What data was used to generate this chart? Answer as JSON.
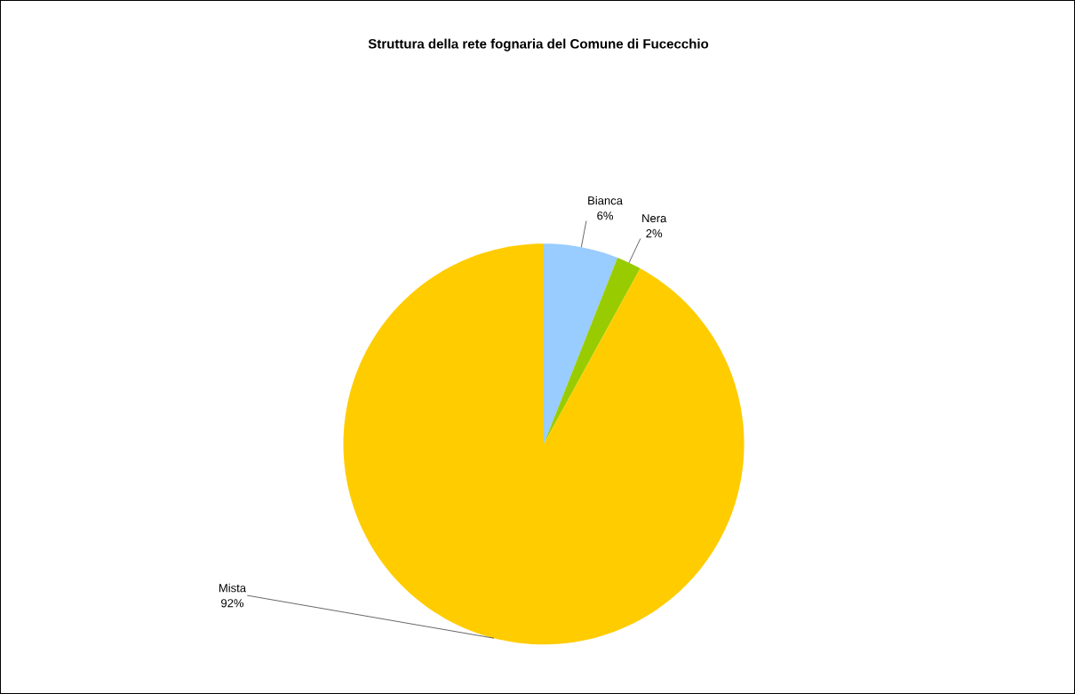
{
  "chart_data": {
    "type": "pie",
    "title": "Struttura della rete fognaria del Comune di Fucecchio",
    "categories": [
      "Bianca",
      "Nera",
      "Mista"
    ],
    "values": [
      6,
      2,
      92
    ],
    "colors": [
      "#99ccff",
      "#99cc00",
      "#ffcc00"
    ],
    "value_labels": [
      "6%",
      "2%",
      "92%"
    ]
  }
}
